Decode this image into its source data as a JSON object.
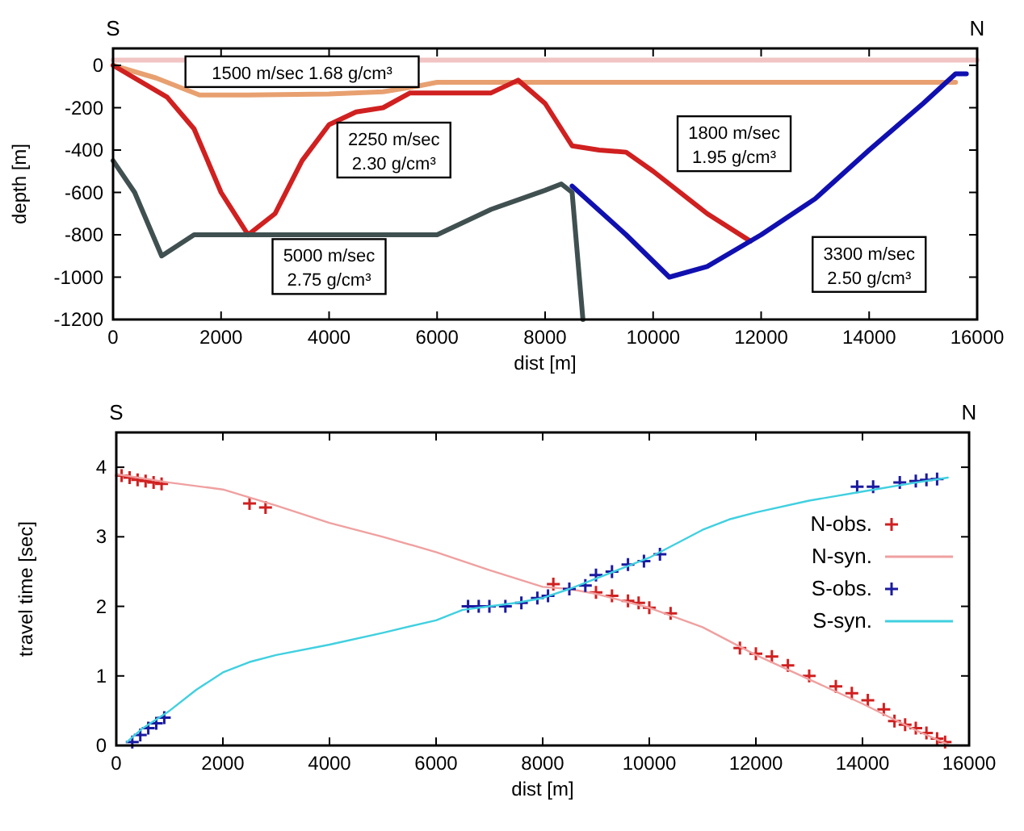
{
  "chart_data": [
    {
      "type": "line",
      "xlabel": "dist [m]",
      "ylabel": "depth [m]",
      "xlim": [
        0,
        16000
      ],
      "ylim": [
        -1200,
        80
      ],
      "xticks": [
        0,
        2000,
        4000,
        6000,
        8000,
        10000,
        12000,
        14000,
        16000
      ],
      "yticks": [
        0,
        -200,
        -400,
        -600,
        -800,
        -1000,
        -1200
      ],
      "grid": false,
      "legend": false,
      "marker": "none",
      "line_style": "solid",
      "annotations": [
        "S",
        "N",
        "1500 m/sec  1.68 g/cm³",
        "2250 m/sec\n2.30 g/cm³",
        "1800 m/sec\n1.95 g/cm³",
        "5000 m/sec\n2.75 g/cm³",
        "3300 m/sec\n2.50 g/cm³"
      ],
      "series": [
        {
          "color": "#f2c4c4",
          "x": [
            0,
            16000
          ],
          "values": [
            25,
            25
          ]
        },
        {
          "color": "#e8a070",
          "x": [
            0,
            800,
            1600,
            2500,
            4000,
            5000,
            5600,
            6000,
            15600
          ],
          "values": [
            0,
            -60,
            -140,
            -140,
            -135,
            -125,
            -100,
            -80,
            -80
          ]
        },
        {
          "color": "#d02020",
          "x": [
            0,
            1000,
            1500,
            2000,
            2500,
            3000,
            3500,
            4000,
            4500,
            5000,
            5500,
            6000,
            7000,
            7500,
            8000,
            8500,
            9000,
            9500,
            10000,
            11000,
            11800
          ],
          "values": [
            0,
            -150,
            -300,
            -600,
            -800,
            -700,
            -450,
            -280,
            -220,
            -200,
            -130,
            -130,
            -130,
            -70,
            -180,
            -380,
            -400,
            -410,
            -500,
            -700,
            -830
          ]
        },
        {
          "color": "#1010b0",
          "x": [
            8500,
            9500,
            10300,
            11000,
            12000,
            13000,
            14000,
            15000,
            15600,
            15800
          ],
          "values": [
            -570,
            -800,
            -1000,
            -950,
            -800,
            -630,
            -400,
            -180,
            -40,
            -40
          ]
        },
        {
          "color": "#405050",
          "x": [
            0,
            400,
            900,
            1500,
            6000,
            7000,
            8000,
            8300,
            8500,
            8700
          ],
          "values": [
            -450,
            -600,
            -900,
            -800,
            -800,
            -680,
            -590,
            -560,
            -600,
            -1200
          ]
        }
      ]
    },
    {
      "type": "line",
      "xlabel": "dist [m]",
      "ylabel": "travel time [sec]",
      "xlim": [
        0,
        16000
      ],
      "ylim": [
        0,
        4.5
      ],
      "xticks": [
        0,
        2000,
        4000,
        6000,
        8000,
        10000,
        12000,
        14000,
        16000
      ],
      "yticks": [
        0,
        1,
        2,
        3,
        4
      ],
      "grid": false,
      "legend": "right",
      "annotations": [
        "S",
        "N"
      ],
      "series": [
        {
          "name": "N-obs.",
          "type": "scatter",
          "marker": "cross",
          "color": "#d02020",
          "x": [
            100,
            250,
            400,
            550,
            700,
            850,
            2500,
            2800,
            8200,
            9000,
            9300,
            9600,
            9800,
            10000,
            10400,
            11700,
            12000,
            12300,
            12600,
            13000,
            13500,
            13800,
            14100,
            14400,
            14600,
            14800,
            15000,
            15200,
            15400,
            15550
          ],
          "values": [
            3.88,
            3.85,
            3.82,
            3.8,
            3.78,
            3.76,
            3.48,
            3.42,
            2.32,
            2.2,
            2.15,
            2.08,
            2.05,
            1.98,
            1.9,
            1.4,
            1.32,
            1.28,
            1.15,
            1.0,
            0.85,
            0.75,
            0.65,
            0.52,
            0.35,
            0.3,
            0.25,
            0.18,
            0.1,
            0.05
          ]
        },
        {
          "name": "N-syn.",
          "marker": "none",
          "color": "#f0a0a0",
          "x": [
            0,
            1000,
            2000,
            3000,
            4000,
            5000,
            6000,
            7000,
            8000,
            8500,
            9000,
            10000,
            11000,
            12000,
            13000,
            14000,
            15000,
            15600
          ],
          "values": [
            3.9,
            3.78,
            3.68,
            3.45,
            3.2,
            3.0,
            2.78,
            2.52,
            2.28,
            2.25,
            2.18,
            1.98,
            1.7,
            1.3,
            0.95,
            0.6,
            0.22,
            0.02
          ]
        },
        {
          "name": "S-obs.",
          "type": "scatter",
          "marker": "cross",
          "color": "#1a1aa0",
          "x": [
            300,
            450,
            600,
            750,
            900,
            6600,
            6800,
            7000,
            7300,
            7600,
            7900,
            8100,
            8500,
            8800,
            9000,
            9300,
            9600,
            9900,
            10200,
            13900,
            14200,
            14700,
            15000,
            15200,
            15400
          ],
          "values": [
            0.05,
            0.15,
            0.25,
            0.32,
            0.4,
            2.0,
            2.0,
            2.0,
            2.0,
            2.05,
            2.12,
            2.15,
            2.25,
            2.3,
            2.45,
            2.5,
            2.6,
            2.65,
            2.75,
            3.72,
            3.72,
            3.78,
            3.8,
            3.82,
            3.83
          ]
        },
        {
          "name": "S-syn.",
          "marker": "none",
          "color": "#40d0e0",
          "x": [
            200,
            500,
            1000,
            1500,
            2000,
            2500,
            3000,
            4000,
            5000,
            6000,
            6500,
            7000,
            7500,
            8000,
            8500,
            9000,
            9500,
            10000,
            10500,
            11000,
            11500,
            12000,
            13000,
            14000,
            15000,
            15600
          ],
          "values": [
            0.05,
            0.25,
            0.5,
            0.8,
            1.05,
            1.2,
            1.3,
            1.45,
            1.62,
            1.8,
            1.95,
            2.0,
            2.05,
            2.12,
            2.25,
            2.4,
            2.55,
            2.7,
            2.9,
            3.1,
            3.25,
            3.35,
            3.52,
            3.65,
            3.78,
            3.85
          ]
        }
      ]
    }
  ]
}
